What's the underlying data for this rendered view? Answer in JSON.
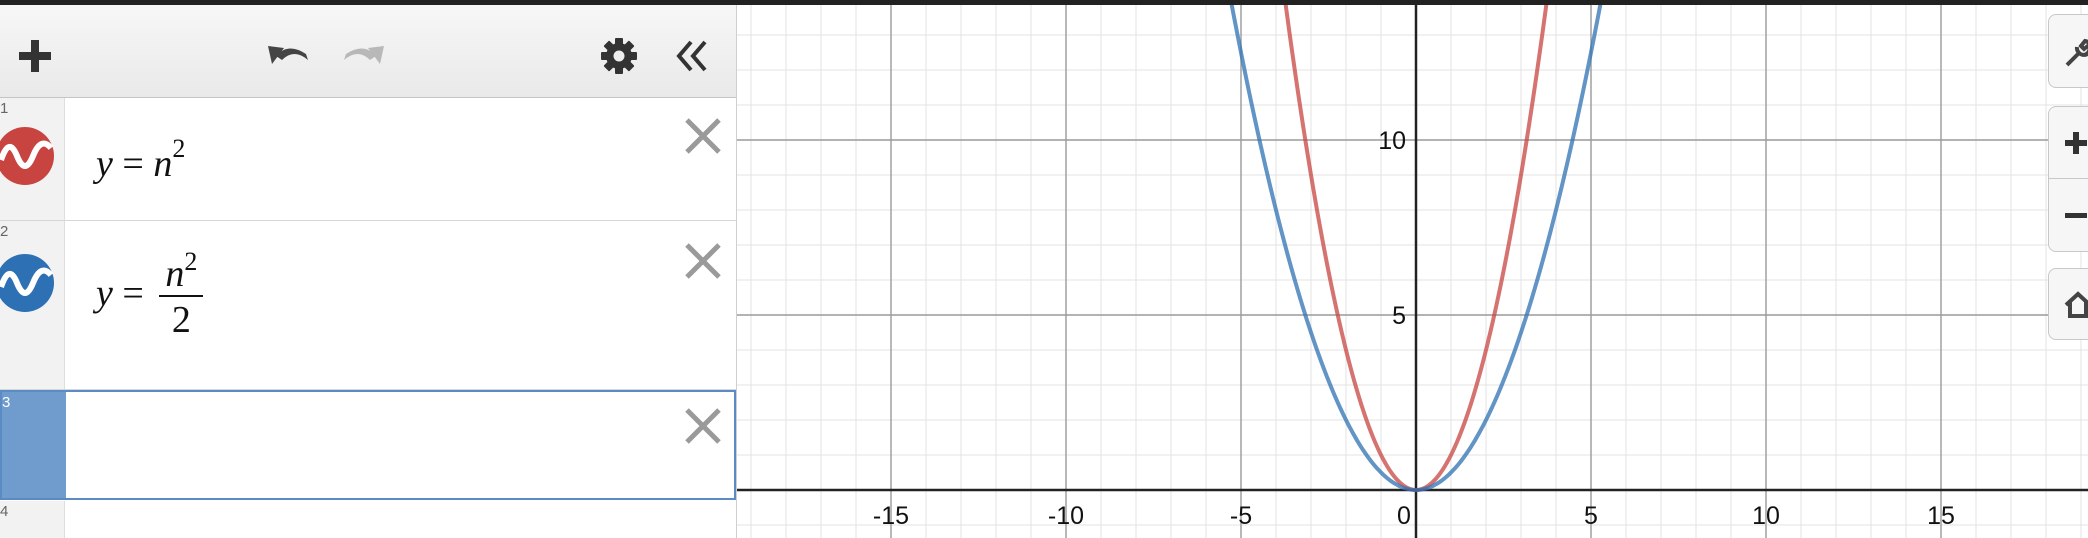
{
  "toolbar": {
    "add_icon": "plus-icon",
    "undo_icon": "undo-icon",
    "redo_icon": "redo-icon",
    "settings_icon": "gear-icon",
    "collapse_icon": "double-chevron-left-icon"
  },
  "expressions": [
    {
      "index": "1",
      "color": "#c74440",
      "lhs": "y",
      "op": "=",
      "var": "n",
      "exp": "2",
      "den": ""
    },
    {
      "index": "2",
      "color": "#2d70b3",
      "lhs": "y",
      "op": "=",
      "var": "n",
      "exp": "2",
      "den": "2"
    },
    {
      "index": "3",
      "value": ""
    },
    {
      "index": "4"
    }
  ],
  "graph": {
    "x_ticks": [
      "-15",
      "-10",
      "-5",
      "0",
      "5",
      "10",
      "15"
    ],
    "y_ticks": [
      "5",
      "10"
    ],
    "curve_colors": {
      "red": "#c74440",
      "blue": "#2d70b3"
    },
    "series": [
      {
        "expression": "y = n^2",
        "color": "#c74440"
      },
      {
        "expression": "y = n^2/2",
        "color": "#2d70b3"
      }
    ]
  },
  "controls": {
    "wrench_icon": "wrench-icon",
    "zoom_in_icon": "plus-icon",
    "zoom_out_icon": "minus-icon",
    "home_icon": "home-icon"
  }
}
